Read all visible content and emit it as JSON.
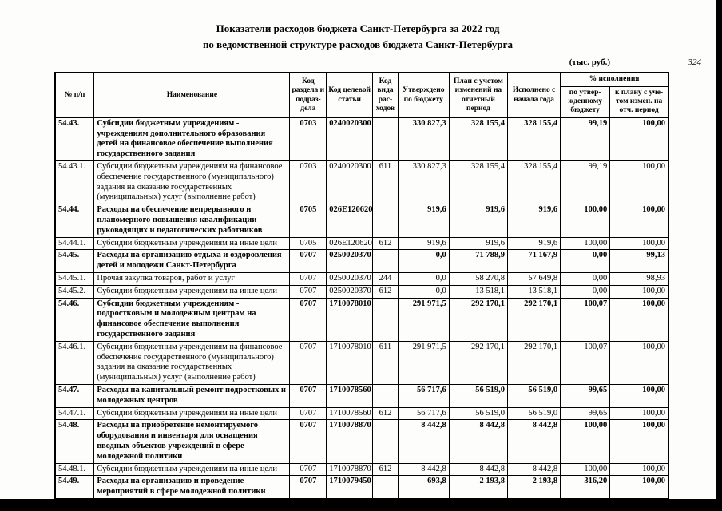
{
  "title_line1": "Показатели расходов бюджета Санкт-Петербурга за 2022 год",
  "title_line2": "по ведомственной структуре расходов бюджета Санкт-Петербурга",
  "units_note": "(тыс. руб.)",
  "page_number": "324",
  "table": {
    "headers": {
      "num": "№ п/п",
      "name": "Наименование",
      "code_section": "Код раздела и подраз- дела",
      "code_target": "Код целевой статьи",
      "code_type": "Код вида рас- ходов",
      "approved": "Утверждено по бюджету",
      "plan_changed": "План с учетом изменений на отчетный период",
      "executed": "Исполнено с начала года",
      "pct_group": "% исполнения",
      "pct_budget": "по утвер- жденному бюджету",
      "pct_plan": "к плану с уче- том измен. на отч. период"
    },
    "rows": [
      {
        "num": "54.43.",
        "name": "Субсидии бюджетным учреждениям - учреждениям дополнительного образования детей на финансовое обеспечение выполнения государственного задания",
        "bold": true,
        "code_section": "0703",
        "code_target": "0240020300",
        "code_type": "",
        "approved": "330 827,3",
        "plan_changed": "328 155,4",
        "executed": "328 155,4",
        "pct_budget": "99,19",
        "pct_plan": "100,00"
      },
      {
        "num": "54.43.1.",
        "name": "Субсидии бюджетным учреждениям на финансовое обеспечение государственного (муниципального) задания на оказание государственных (муниципальных) услуг (выполнение работ)",
        "bold": false,
        "code_section": "0703",
        "code_target": "0240020300",
        "code_type": "611",
        "approved": "330 827,3",
        "plan_changed": "328 155,4",
        "executed": "328 155,4",
        "pct_budget": "99,19",
        "pct_plan": "100,00"
      },
      {
        "num": "54.44.",
        "name": "Расходы на обеспечение непрерывного и планомерного повышения квалификации руководящих и педагогических работников",
        "bold": true,
        "code_section": "0705",
        "code_target": "026E120620",
        "code_type": "",
        "approved": "919,6",
        "plan_changed": "919,6",
        "executed": "919,6",
        "pct_budget": "100,00",
        "pct_plan": "100,00"
      },
      {
        "num": "54.44.1.",
        "name": "Субсидии бюджетным учреждениям на иные цели",
        "bold": false,
        "code_section": "0705",
        "code_target": "026E120620",
        "code_type": "612",
        "approved": "919,6",
        "plan_changed": "919,6",
        "executed": "919,6",
        "pct_budget": "100,00",
        "pct_plan": "100,00"
      },
      {
        "num": "54.45.",
        "name": "Расходы на организацию отдыха и оздоровления детей и молодежи Санкт-Петербурга",
        "bold": true,
        "code_section": "0707",
        "code_target": "0250020370",
        "code_type": "",
        "approved": "0,0",
        "plan_changed": "71 788,9",
        "executed": "71 167,9",
        "pct_budget": "0,00",
        "pct_plan": "99,13"
      },
      {
        "num": "54.45.1.",
        "name": "Прочая закупка товаров, работ и услуг",
        "bold": false,
        "code_section": "0707",
        "code_target": "0250020370",
        "code_type": "244",
        "approved": "0,0",
        "plan_changed": "58 270,8",
        "executed": "57 649,8",
        "pct_budget": "0,00",
        "pct_plan": "98,93"
      },
      {
        "num": "54.45.2.",
        "name": "Субсидии бюджетным учреждениям на иные цели",
        "bold": false,
        "code_section": "0707",
        "code_target": "0250020370",
        "code_type": "612",
        "approved": "0,0",
        "plan_changed": "13 518,1",
        "executed": "13 518,1",
        "pct_budget": "0,00",
        "pct_plan": "100,00"
      },
      {
        "num": "54.46.",
        "name": "Субсидии бюджетным учреждениям - подростковым и молодежным центрам на финансовое обеспечение выполнения государственного задания",
        "bold": true,
        "code_section": "0707",
        "code_target": "1710078010",
        "code_type": "",
        "approved": "291 971,5",
        "plan_changed": "292 170,1",
        "executed": "292 170,1",
        "pct_budget": "100,07",
        "pct_plan": "100,00"
      },
      {
        "num": "54.46.1.",
        "name": "Субсидии бюджетным учреждениям на финансовое обеспечение государственного (муниципального) задания на оказание государственных (муниципальных) услуг (выполнение работ)",
        "bold": false,
        "code_section": "0707",
        "code_target": "1710078010",
        "code_type": "611",
        "approved": "291 971,5",
        "plan_changed": "292 170,1",
        "executed": "292 170,1",
        "pct_budget": "100,07",
        "pct_plan": "100,00"
      },
      {
        "num": "54.47.",
        "name": "Расходы на капитальный ремонт подростковых и молодежных центров",
        "bold": true,
        "code_section": "0707",
        "code_target": "1710078560",
        "code_type": "",
        "approved": "56 717,6",
        "plan_changed": "56 519,0",
        "executed": "56 519,0",
        "pct_budget": "99,65",
        "pct_plan": "100,00"
      },
      {
        "num": "54.47.1.",
        "name": "Субсидии бюджетным учреждениям на иные цели",
        "bold": false,
        "code_section": "0707",
        "code_target": "1710078560",
        "code_type": "612",
        "approved": "56 717,6",
        "plan_changed": "56 519,0",
        "executed": "56 519,0",
        "pct_budget": "99,65",
        "pct_plan": "100,00"
      },
      {
        "num": "54.48.",
        "name": "Расходы на приобретение немонтируемого оборудования и инвентаря для оснащения вводных объектов учреждений в сфере молодежной политики",
        "bold": true,
        "code_section": "0707",
        "code_target": "1710078870",
        "code_type": "",
        "approved": "8 442,8",
        "plan_changed": "8 442,8",
        "executed": "8 442,8",
        "pct_budget": "100,00",
        "pct_plan": "100,00"
      },
      {
        "num": "54.48.1.",
        "name": "Субсидии бюджетным учреждениям на иные цели",
        "bold": false,
        "code_section": "0707",
        "code_target": "1710078870",
        "code_type": "612",
        "approved": "8 442,8",
        "plan_changed": "8 442,8",
        "executed": "8 442,8",
        "pct_budget": "100,00",
        "pct_plan": "100,00"
      },
      {
        "num": "54.49.",
        "name": "Расходы на организацию и проведение мероприятий в сфере молодежной политики",
        "bold": true,
        "code_section": "0707",
        "code_target": "1710079450",
        "code_type": "",
        "approved": "693,8",
        "plan_changed": "2 193,8",
        "executed": "2 193,8",
        "pct_budget": "316,20",
        "pct_plan": "100,00"
      }
    ]
  }
}
